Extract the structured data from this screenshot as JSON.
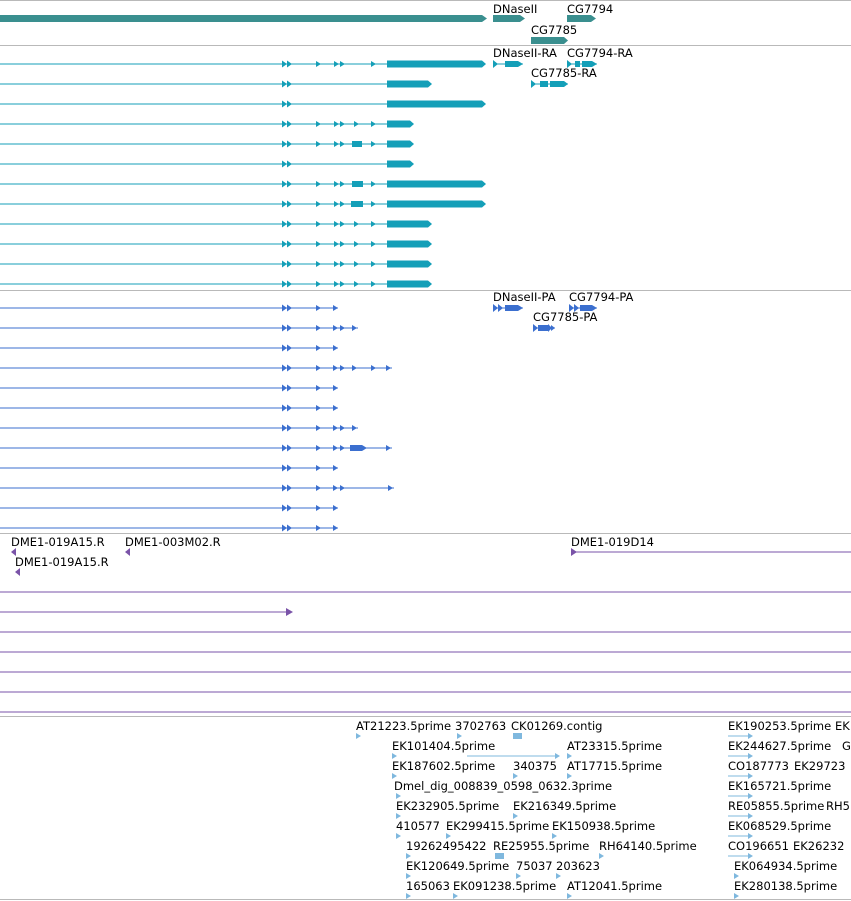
{
  "colors": {
    "gene": "#3a8f8f",
    "mrna": "#149fb8",
    "protein": "#3b6fcf",
    "clone": "#7a53a8",
    "est": "#7fb8de",
    "separator": "#b9b9b9"
  },
  "tracks": {
    "genes": {
      "labels": [
        "DNaseII",
        "CG7794",
        "CG7785"
      ]
    },
    "mrnas": {
      "labels": [
        "DNaseII-RA",
        "CG7794-RA",
        "CG7785-RA"
      ]
    },
    "proteins": {
      "labels": [
        "DNaseII-PA",
        "CG7794-PA",
        "CG7785-PA"
      ]
    },
    "clones": {
      "labels": [
        "DME1-019A15.R",
        "DME1-003M02.R",
        "DME1-019A15.R",
        "DME1-019D14"
      ]
    },
    "ests": {
      "labels": [
        "AT21223.5prime",
        "3702763",
        "CK01269.contig",
        "EK101404.5prime",
        "AT23315.5prime",
        "EK187602.5prime",
        "340375",
        "AT17715.5prime",
        "Dmel_dig_008839_0598_0632.3prime",
        "EK232905.5prime",
        "EK216349.5prime",
        "410577",
        "EK299415.5prime",
        "EK150938.5prime",
        "19262495422",
        "RE25955.5prime",
        "RH64140.5prime",
        "EK120649.5prime",
        "75037",
        "203623",
        "165063",
        "EK091238.5prime",
        "AT12041.5prime",
        "EK190253.5prime",
        "EK",
        "EK244627.5prime",
        "G",
        "CO187773",
        "EK29723",
        "EK165721.5prime",
        "RE05855.5prime",
        "RH5",
        "EK068529.5prime",
        "CO196651",
        "EK26232",
        "EK064934.5prime",
        "EK280138.5prime"
      ]
    }
  }
}
